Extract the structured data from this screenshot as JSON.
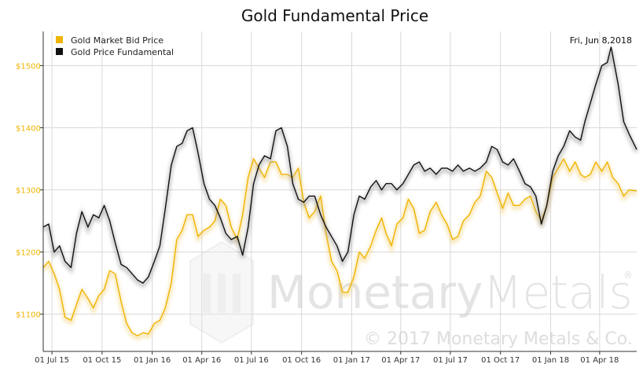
{
  "chart_data": {
    "type": "line",
    "title": "Gold Fundamental Price",
    "date_label": "Fri, Jun 8,2018",
    "x_range": [
      "2015-06-15",
      "2018-06-08"
    ],
    "ylim": [
      1040,
      1555
    ],
    "y_ticks": [
      {
        "value": 1100,
        "label": "$1100"
      },
      {
        "value": 1200,
        "label": "$1200"
      },
      {
        "value": 1300,
        "label": "$1300"
      },
      {
        "value": 1400,
        "label": "$1400"
      },
      {
        "value": 1500,
        "label": "$1500"
      }
    ],
    "x_ticks": [
      {
        "date": "2015-07-01",
        "label": "01 Jul 15"
      },
      {
        "date": "2015-10-01",
        "label": "01 Oct 15"
      },
      {
        "date": "2016-01-01",
        "label": "01 Jan 16"
      },
      {
        "date": "2016-04-01",
        "label": "01 Apr 16"
      },
      {
        "date": "2016-07-01",
        "label": "01 Jul 16"
      },
      {
        "date": "2016-10-01",
        "label": "01 Oct 16"
      },
      {
        "date": "2017-01-01",
        "label": "01 Jan 17"
      },
      {
        "date": "2017-04-01",
        "label": "01 Apr 17"
      },
      {
        "date": "2017-07-01",
        "label": "01 Jul 17"
      },
      {
        "date": "2017-10-01",
        "label": "01 Oct 17"
      },
      {
        "date": "2018-01-01",
        "label": "01 Jan 18"
      },
      {
        "date": "2018-04-01",
        "label": "01 Apr 18"
      }
    ],
    "grid": true,
    "legend_position": "top-left",
    "series": [
      {
        "name": "Gold Market Bid Price",
        "color": "#F0B400",
        "points": [
          [
            "2015-06-15",
            1175
          ],
          [
            "2015-06-25",
            1185
          ],
          [
            "2015-07-05",
            1165
          ],
          [
            "2015-07-15",
            1140
          ],
          [
            "2015-07-25",
            1095
          ],
          [
            "2015-08-05",
            1090
          ],
          [
            "2015-08-15",
            1115
          ],
          [
            "2015-08-25",
            1140
          ],
          [
            "2015-09-05",
            1125
          ],
          [
            "2015-09-15",
            1110
          ],
          [
            "2015-09-25",
            1130
          ],
          [
            "2015-10-05",
            1140
          ],
          [
            "2015-10-15",
            1170
          ],
          [
            "2015-10-25",
            1165
          ],
          [
            "2015-11-05",
            1120
          ],
          [
            "2015-11-15",
            1085
          ],
          [
            "2015-11-25",
            1070
          ],
          [
            "2015-12-05",
            1065
          ],
          [
            "2015-12-15",
            1070
          ],
          [
            "2015-12-25",
            1068
          ],
          [
            "2016-01-05",
            1085
          ],
          [
            "2016-01-15",
            1090
          ],
          [
            "2016-01-25",
            1110
          ],
          [
            "2016-02-05",
            1150
          ],
          [
            "2016-02-15",
            1220
          ],
          [
            "2016-02-25",
            1235
          ],
          [
            "2016-03-05",
            1260
          ],
          [
            "2016-03-15",
            1260
          ],
          [
            "2016-03-25",
            1225
          ],
          [
            "2016-04-05",
            1235
          ],
          [
            "2016-04-15",
            1240
          ],
          [
            "2016-04-25",
            1250
          ],
          [
            "2016-05-05",
            1285
          ],
          [
            "2016-05-15",
            1275
          ],
          [
            "2016-05-25",
            1240
          ],
          [
            "2016-06-05",
            1220
          ],
          [
            "2016-06-15",
            1260
          ],
          [
            "2016-06-25",
            1320
          ],
          [
            "2016-07-05",
            1350
          ],
          [
            "2016-07-15",
            1335
          ],
          [
            "2016-07-25",
            1320
          ],
          [
            "2016-08-05",
            1345
          ],
          [
            "2016-08-15",
            1345
          ],
          [
            "2016-08-25",
            1325
          ],
          [
            "2016-09-05",
            1325
          ],
          [
            "2016-09-15",
            1320
          ],
          [
            "2016-09-25",
            1335
          ],
          [
            "2016-10-05",
            1280
          ],
          [
            "2016-10-15",
            1255
          ],
          [
            "2016-10-25",
            1265
          ],
          [
            "2016-11-05",
            1290
          ],
          [
            "2016-11-15",
            1230
          ],
          [
            "2016-11-25",
            1185
          ],
          [
            "2016-12-05",
            1170
          ],
          [
            "2016-12-15",
            1135
          ],
          [
            "2016-12-25",
            1135
          ],
          [
            "2017-01-05",
            1160
          ],
          [
            "2017-01-15",
            1200
          ],
          [
            "2017-01-25",
            1190
          ],
          [
            "2017-02-05",
            1210
          ],
          [
            "2017-02-15",
            1235
          ],
          [
            "2017-02-25",
            1255
          ],
          [
            "2017-03-05",
            1230
          ],
          [
            "2017-03-15",
            1210
          ],
          [
            "2017-03-25",
            1245
          ],
          [
            "2017-04-05",
            1255
          ],
          [
            "2017-04-15",
            1285
          ],
          [
            "2017-04-25",
            1270
          ],
          [
            "2017-05-05",
            1230
          ],
          [
            "2017-05-15",
            1235
          ],
          [
            "2017-05-25",
            1265
          ],
          [
            "2017-06-05",
            1280
          ],
          [
            "2017-06-15",
            1260
          ],
          [
            "2017-06-25",
            1245
          ],
          [
            "2017-07-05",
            1220
          ],
          [
            "2017-07-15",
            1225
          ],
          [
            "2017-07-25",
            1250
          ],
          [
            "2017-08-05",
            1260
          ],
          [
            "2017-08-15",
            1280
          ],
          [
            "2017-08-25",
            1290
          ],
          [
            "2017-09-05",
            1330
          ],
          [
            "2017-09-15",
            1320
          ],
          [
            "2017-09-25",
            1295
          ],
          [
            "2017-10-05",
            1270
          ],
          [
            "2017-10-15",
            1295
          ],
          [
            "2017-10-25",
            1275
          ],
          [
            "2017-11-05",
            1275
          ],
          [
            "2017-11-15",
            1285
          ],
          [
            "2017-11-25",
            1290
          ],
          [
            "2017-12-05",
            1265
          ],
          [
            "2017-12-15",
            1250
          ],
          [
            "2017-12-25",
            1275
          ],
          [
            "2018-01-05",
            1320
          ],
          [
            "2018-01-15",
            1335
          ],
          [
            "2018-01-25",
            1350
          ],
          [
            "2018-02-05",
            1330
          ],
          [
            "2018-02-15",
            1345
          ],
          [
            "2018-02-25",
            1325
          ],
          [
            "2018-03-05",
            1320
          ],
          [
            "2018-03-15",
            1325
          ],
          [
            "2018-03-25",
            1345
          ],
          [
            "2018-04-05",
            1330
          ],
          [
            "2018-04-15",
            1345
          ],
          [
            "2018-04-25",
            1320
          ],
          [
            "2018-05-05",
            1310
          ],
          [
            "2018-05-15",
            1290
          ],
          [
            "2018-05-25",
            1300
          ],
          [
            "2018-06-08",
            1298
          ]
        ]
      },
      {
        "name": "Gold Price Fundamental",
        "color": "#111111",
        "points": [
          [
            "2015-06-15",
            1240
          ],
          [
            "2015-06-25",
            1245
          ],
          [
            "2015-07-05",
            1200
          ],
          [
            "2015-07-15",
            1210
          ],
          [
            "2015-07-25",
            1185
          ],
          [
            "2015-08-05",
            1175
          ],
          [
            "2015-08-15",
            1230
          ],
          [
            "2015-08-25",
            1265
          ],
          [
            "2015-09-05",
            1240
          ],
          [
            "2015-09-15",
            1260
          ],
          [
            "2015-09-25",
            1255
          ],
          [
            "2015-10-05",
            1275
          ],
          [
            "2015-10-15",
            1250
          ],
          [
            "2015-10-25",
            1215
          ],
          [
            "2015-11-05",
            1180
          ],
          [
            "2015-11-15",
            1175
          ],
          [
            "2015-11-25",
            1165
          ],
          [
            "2015-12-05",
            1155
          ],
          [
            "2015-12-15",
            1150
          ],
          [
            "2015-12-25",
            1160
          ],
          [
            "2016-01-05",
            1185
          ],
          [
            "2016-01-15",
            1210
          ],
          [
            "2016-01-25",
            1270
          ],
          [
            "2016-02-05",
            1340
          ],
          [
            "2016-02-15",
            1370
          ],
          [
            "2016-02-25",
            1375
          ],
          [
            "2016-03-05",
            1395
          ],
          [
            "2016-03-15",
            1400
          ],
          [
            "2016-03-25",
            1360
          ],
          [
            "2016-04-05",
            1310
          ],
          [
            "2016-04-15",
            1285
          ],
          [
            "2016-04-25",
            1275
          ],
          [
            "2016-05-05",
            1255
          ],
          [
            "2016-05-15",
            1230
          ],
          [
            "2016-05-25",
            1220
          ],
          [
            "2016-06-05",
            1225
          ],
          [
            "2016-06-15",
            1195
          ],
          [
            "2016-06-25",
            1240
          ],
          [
            "2016-07-05",
            1310
          ],
          [
            "2016-07-15",
            1340
          ],
          [
            "2016-07-25",
            1355
          ],
          [
            "2016-08-05",
            1350
          ],
          [
            "2016-08-15",
            1395
          ],
          [
            "2016-08-25",
            1400
          ],
          [
            "2016-09-05",
            1370
          ],
          [
            "2016-09-15",
            1310
          ],
          [
            "2016-09-25",
            1285
          ],
          [
            "2016-10-05",
            1280
          ],
          [
            "2016-10-15",
            1290
          ],
          [
            "2016-10-25",
            1290
          ],
          [
            "2016-11-05",
            1260
          ],
          [
            "2016-11-15",
            1240
          ],
          [
            "2016-11-25",
            1225
          ],
          [
            "2016-12-05",
            1210
          ],
          [
            "2016-12-15",
            1185
          ],
          [
            "2016-12-25",
            1200
          ],
          [
            "2017-01-05",
            1260
          ],
          [
            "2017-01-15",
            1290
          ],
          [
            "2017-01-25",
            1285
          ],
          [
            "2017-02-05",
            1305
          ],
          [
            "2017-02-15",
            1315
          ],
          [
            "2017-02-25",
            1300
          ],
          [
            "2017-03-05",
            1310
          ],
          [
            "2017-03-15",
            1310
          ],
          [
            "2017-03-25",
            1300
          ],
          [
            "2017-04-05",
            1310
          ],
          [
            "2017-04-15",
            1325
          ],
          [
            "2017-04-25",
            1340
          ],
          [
            "2017-05-05",
            1345
          ],
          [
            "2017-05-15",
            1330
          ],
          [
            "2017-05-25",
            1335
          ],
          [
            "2017-06-05",
            1325
          ],
          [
            "2017-06-15",
            1335
          ],
          [
            "2017-06-25",
            1335
          ],
          [
            "2017-07-05",
            1330
          ],
          [
            "2017-07-15",
            1340
          ],
          [
            "2017-07-25",
            1330
          ],
          [
            "2017-08-05",
            1335
          ],
          [
            "2017-08-15",
            1330
          ],
          [
            "2017-08-25",
            1335
          ],
          [
            "2017-09-05",
            1345
          ],
          [
            "2017-09-15",
            1370
          ],
          [
            "2017-09-25",
            1365
          ],
          [
            "2017-10-05",
            1345
          ],
          [
            "2017-10-15",
            1340
          ],
          [
            "2017-10-25",
            1350
          ],
          [
            "2017-11-05",
            1330
          ],
          [
            "2017-11-15",
            1310
          ],
          [
            "2017-11-25",
            1305
          ],
          [
            "2017-12-05",
            1290
          ],
          [
            "2017-12-15",
            1245
          ],
          [
            "2017-12-25",
            1275
          ],
          [
            "2018-01-05",
            1330
          ],
          [
            "2018-01-15",
            1355
          ],
          [
            "2018-01-25",
            1370
          ],
          [
            "2018-02-05",
            1395
          ],
          [
            "2018-02-15",
            1385
          ],
          [
            "2018-02-25",
            1380
          ],
          [
            "2018-03-05",
            1410
          ],
          [
            "2018-03-15",
            1440
          ],
          [
            "2018-03-25",
            1470
          ],
          [
            "2018-04-05",
            1500
          ],
          [
            "2018-04-15",
            1505
          ],
          [
            "2018-04-22",
            1530
          ],
          [
            "2018-05-05",
            1470
          ],
          [
            "2018-05-15",
            1410
          ],
          [
            "2018-05-25",
            1390
          ],
          [
            "2018-06-08",
            1365
          ]
        ]
      }
    ]
  },
  "watermark": {
    "brand_part1": "Monetary",
    "brand_part2": "Metals",
    "registered_mark": "®",
    "copyright": "© 2017 Monetary Metals & Co."
  }
}
